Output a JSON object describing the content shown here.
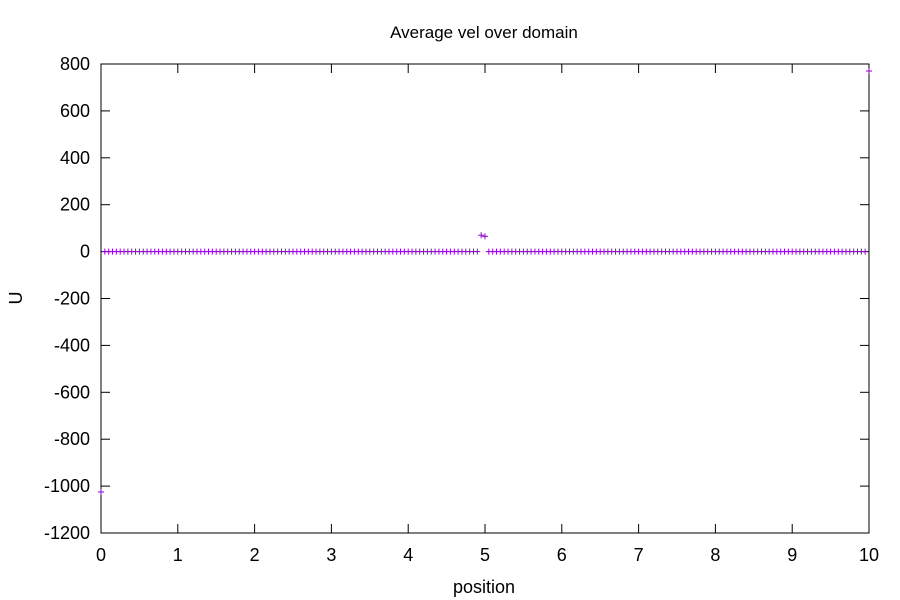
{
  "chart_data": {
    "type": "scatter",
    "title": "Average vel over domain",
    "xlabel": "position",
    "ylabel": "U",
    "xlim": [
      0,
      10
    ],
    "ylim": [
      -1200,
      800
    ],
    "x_ticks": [
      0,
      1,
      2,
      3,
      4,
      5,
      6,
      7,
      8,
      9,
      10
    ],
    "y_ticks": [
      -1200,
      -1000,
      -800,
      -600,
      -400,
      -200,
      0,
      200,
      400,
      600,
      800
    ],
    "grid": false,
    "legend": "none",
    "marker": "plus",
    "color": "#9400d3",
    "series": [
      {
        "x_range": [
          0,
          10
        ],
        "x_step": 0.05,
        "baseline_y": 0,
        "exceptions": [
          {
            "x": 0.0,
            "y": -1025
          },
          {
            "x": 4.95,
            "y": 70
          },
          {
            "x": 5.0,
            "y": 65
          },
          {
            "x": 10.0,
            "y": 770
          }
        ]
      }
    ]
  }
}
